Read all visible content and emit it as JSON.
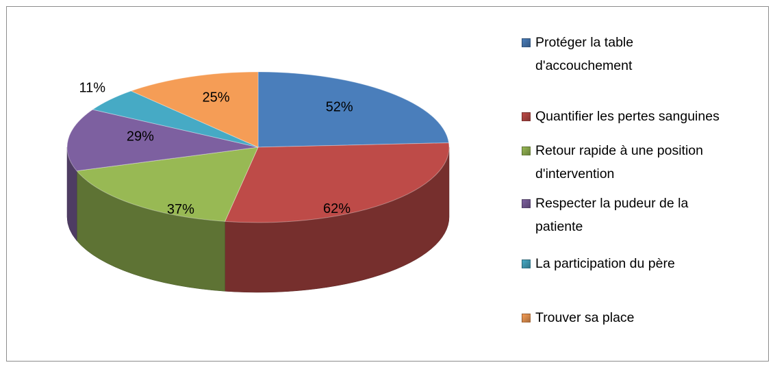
{
  "chart_data": {
    "type": "pie",
    "categories": [
      "Protéger la table\nd'accouchement",
      "Quantifier les pertes sanguines",
      "Retour rapide à une position\nd'intervention",
      "Respecter la pudeur de la\npatiente",
      "La participation du père",
      "Trouver sa place"
    ],
    "values": [
      52,
      62,
      37,
      29,
      11,
      25
    ],
    "value_labels": [
      "52%",
      "62%",
      "37%",
      "29%",
      "11%",
      "25%"
    ],
    "colors": [
      "#4a7ebb",
      "#be4b48",
      "#98b954",
      "#7d60a0",
      "#46aac5",
      "#f59d56"
    ],
    "legend": "right"
  }
}
